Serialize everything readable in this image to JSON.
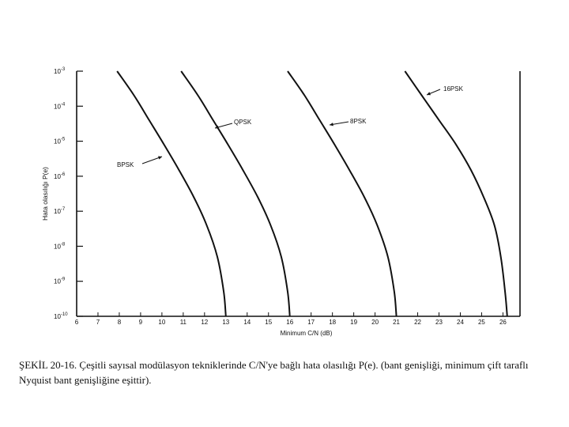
{
  "chart_data": {
    "type": "line",
    "ylabel": "Hata olasılığı P(e)",
    "xlabel": "Minimum C/N (dB)",
    "x_ticks": [
      "6",
      "7",
      "8",
      "9",
      "10",
      "11",
      "12",
      "13",
      "14",
      "15",
      "16",
      "17",
      "18",
      "19",
      "20",
      "21",
      "22",
      "23",
      "24",
      "25",
      "26"
    ],
    "xlim": [
      6,
      26.8
    ],
    "y_scale": "log",
    "y_ticks": [
      {
        "base": "10",
        "exp": "-3"
      },
      {
        "base": "10",
        "exp": "-4"
      },
      {
        "base": "10",
        "exp": "-5"
      },
      {
        "base": "10",
        "exp": "-6"
      },
      {
        "base": "10",
        "exp": "-7"
      },
      {
        "base": "10",
        "exp": "-8"
      },
      {
        "base": "10",
        "exp": "-9"
      },
      {
        "base": "10",
        "exp": "-10"
      }
    ],
    "ylim": [
      1e-10,
      0.001
    ],
    "grid": false,
    "series": [
      {
        "name": "BPSK",
        "points": [
          [
            7.9,
            0.001
          ],
          [
            8.7,
            0.0002
          ],
          [
            9.4,
            4e-05
          ],
          [
            10.1,
            8e-06
          ],
          [
            10.8,
            1.5e-06
          ],
          [
            11.5,
            2.5e-07
          ],
          [
            12.1,
            4e-08
          ],
          [
            12.6,
            5e-09
          ],
          [
            12.9,
            5e-10
          ],
          [
            13.0,
            1e-10
          ]
        ]
      },
      {
        "name": "QPSK",
        "points": [
          [
            10.9,
            0.001
          ],
          [
            11.7,
            0.0002
          ],
          [
            12.4,
            4e-05
          ],
          [
            13.1,
            8e-06
          ],
          [
            13.8,
            1.5e-06
          ],
          [
            14.5,
            2.5e-07
          ],
          [
            15.1,
            4e-08
          ],
          [
            15.6,
            5e-09
          ],
          [
            15.9,
            5e-10
          ],
          [
            16.0,
            1e-10
          ]
        ]
      },
      {
        "name": "8PSK",
        "points": [
          [
            15.9,
            0.001
          ],
          [
            16.7,
            0.0002
          ],
          [
            17.4,
            4e-05
          ],
          [
            18.1,
            8e-06
          ],
          [
            18.8,
            1.5e-06
          ],
          [
            19.5,
            2.5e-07
          ],
          [
            20.1,
            4e-08
          ],
          [
            20.6,
            5e-09
          ],
          [
            20.9,
            5e-10
          ],
          [
            21.0,
            1e-10
          ]
        ]
      },
      {
        "name": "16PSK",
        "points": [
          [
            21.4,
            0.001
          ],
          [
            22.2,
            0.0002
          ],
          [
            23.0,
            4e-05
          ],
          [
            23.8,
            8e-06
          ],
          [
            24.5,
            1.5e-06
          ],
          [
            25.1,
            2.5e-07
          ],
          [
            25.6,
            4e-08
          ],
          [
            25.9,
            5e-09
          ],
          [
            26.1,
            5e-10
          ],
          [
            26.2,
            1e-10
          ]
        ]
      }
    ],
    "annotations": [
      {
        "text": "16PSK",
        "series": "16PSK"
      },
      {
        "text": "8PSK",
        "series": "8PSK"
      },
      {
        "text": "QPSK",
        "series": "QPSK"
      },
      {
        "text": "BPSK",
        "series": "BPSK"
      }
    ]
  },
  "caption": "ŞEKİL 20-16. Çeşitli sayısal modülasyon tekniklerinde C/N'ye bağlı hata olasılığı P(e). (bant genişliği, minimum çift taraflı Nyquist bant genişliğine eşittir)."
}
